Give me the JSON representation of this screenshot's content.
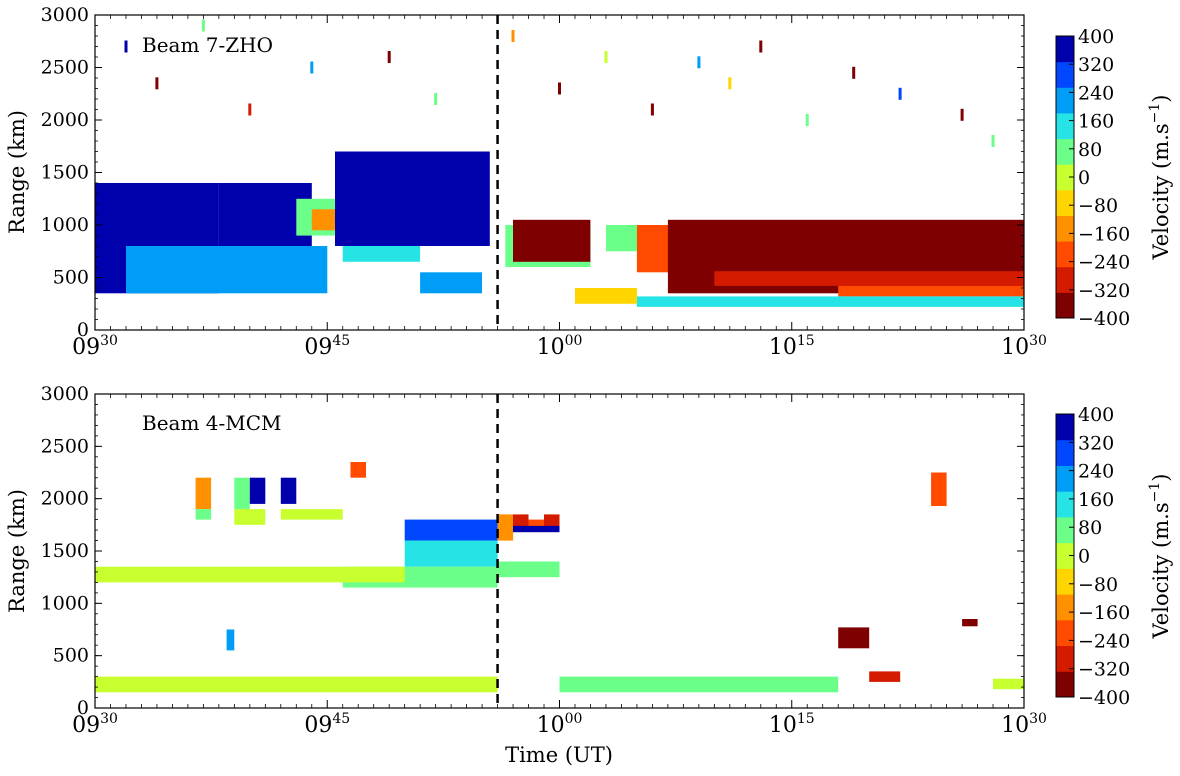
{
  "chart_data": [
    {
      "type": "heatmap",
      "title": "Beam 7-ZHO",
      "ylabel": "Range (km)",
      "ylim": [
        0,
        3000
      ],
      "yticks": [
        "0",
        "500",
        "1000",
        "1500",
        "2000",
        "2500",
        "3000"
      ],
      "xticks": [
        {
          "hh": "09",
          "mm": "30"
        },
        {
          "hh": "09",
          "mm": "45"
        },
        {
          "hh": "10",
          "mm": "00"
        },
        {
          "hh": "10",
          "mm": "15"
        },
        {
          "hh": "10",
          "mm": "30"
        }
      ],
      "xlim_minutes": [
        570,
        630
      ],
      "marker_minute": 596,
      "colorbar": {
        "label": "Velocity (m.s",
        "label_sup": "−1",
        "ticks": [
          "400",
          "320",
          "240",
          "160",
          "80",
          "0",
          "−80",
          "−160",
          "−240",
          "−320",
          "−400"
        ],
        "range": [
          -400,
          400
        ]
      },
      "regions": [
        {
          "t0": 570,
          "t1": 578,
          "r0": 350,
          "r1": 1400,
          "v": 380
        },
        {
          "t0": 578,
          "t1": 584,
          "r0": 800,
          "r1": 1400,
          "v": 380
        },
        {
          "t0": 583,
          "t1": 586,
          "r0": 900,
          "r1": 1250,
          "v": 100
        },
        {
          "t0": 584,
          "t1": 585.5,
          "r0": 950,
          "r1": 1150,
          "v": -150
        },
        {
          "t0": 585.5,
          "t1": 595.5,
          "r0": 800,
          "r1": 1700,
          "v": 380
        },
        {
          "t0": 586,
          "t1": 591,
          "r0": 650,
          "r1": 800,
          "v": 150
        },
        {
          "t0": 572,
          "t1": 585,
          "r0": 350,
          "r1": 800,
          "v": 250
        },
        {
          "t0": 591,
          "t1": 595,
          "r0": 350,
          "r1": 550,
          "v": 200
        },
        {
          "t0": 596.5,
          "t1": 602,
          "r0": 600,
          "r1": 1000,
          "v": 60
        },
        {
          "t0": 597,
          "t1": 602,
          "r0": 650,
          "r1": 1050,
          "v": -360
        },
        {
          "t0": 601,
          "t1": 605,
          "r0": 250,
          "r1": 400,
          "v": -60
        },
        {
          "t0": 603,
          "t1": 606,
          "r0": 750,
          "r1": 1000,
          "v": 80
        },
        {
          "t0": 605,
          "t1": 608,
          "r0": 550,
          "r1": 1000,
          "v": -220
        },
        {
          "t0": 607,
          "t1": 630,
          "r0": 350,
          "r1": 1050,
          "v": -370
        },
        {
          "t0": 610,
          "t1": 630,
          "r0": 420,
          "r1": 560,
          "v": -280
        },
        {
          "t0": 618,
          "t1": 630,
          "r0": 320,
          "r1": 420,
          "v": -200
        },
        {
          "t0": 605,
          "t1": 630,
          "r0": 220,
          "r1": 320,
          "v": 120
        }
      ],
      "scatter": [
        {
          "t": 572,
          "r": 2700,
          "v": 380
        },
        {
          "t": 574,
          "r": 2350,
          "v": -380
        },
        {
          "t": 577,
          "r": 2900,
          "v": 100
        },
        {
          "t": 580,
          "r": 2100,
          "v": -300
        },
        {
          "t": 584,
          "r": 2500,
          "v": 250
        },
        {
          "t": 589,
          "r": 2600,
          "v": -380
        },
        {
          "t": 592,
          "r": 2200,
          "v": 60
        },
        {
          "t": 597,
          "r": 2800,
          "v": -120
        },
        {
          "t": 600,
          "r": 2300,
          "v": -380
        },
        {
          "t": 603,
          "r": 2600,
          "v": 20
        },
        {
          "t": 606,
          "r": 2100,
          "v": -390
        },
        {
          "t": 609,
          "r": 2550,
          "v": 200
        },
        {
          "t": 611,
          "r": 2350,
          "v": -60
        },
        {
          "t": 613,
          "r": 2700,
          "v": -380
        },
        {
          "t": 616,
          "r": 2000,
          "v": 100
        },
        {
          "t": 619,
          "r": 2450,
          "v": -380
        },
        {
          "t": 622,
          "r": 2250,
          "v": 300
        },
        {
          "t": 626,
          "r": 2050,
          "v": -360
        },
        {
          "t": 628,
          "r": 1800,
          "v": 60
        }
      ]
    },
    {
      "type": "heatmap",
      "title": "Beam 4-MCM",
      "ylabel": "Range (km)",
      "xlabel": "Time (UT)",
      "ylim": [
        0,
        3000
      ],
      "yticks": [
        "0",
        "500",
        "1000",
        "1500",
        "2000",
        "2500",
        "3000"
      ],
      "xticks": [
        {
          "hh": "09",
          "mm": "30"
        },
        {
          "hh": "09",
          "mm": "45"
        },
        {
          "hh": "10",
          "mm": "00"
        },
        {
          "hh": "10",
          "mm": "15"
        },
        {
          "hh": "10",
          "mm": "30"
        }
      ],
      "xlim_minutes": [
        570,
        630
      ],
      "marker_minute": 596,
      "colorbar": {
        "label": "Velocity (m.s",
        "label_sup": "−1",
        "ticks": [
          "400",
          "320",
          "240",
          "160",
          "80",
          "0",
          "−80",
          "−160",
          "−240",
          "−320",
          "−400"
        ],
        "range": [
          -400,
          400
        ]
      },
      "regions": [
        {
          "t0": 576.5,
          "t1": 577.5,
          "r0": 1900,
          "r1": 2200,
          "v": -120
        },
        {
          "t0": 576.5,
          "t1": 577.5,
          "r0": 1800,
          "r1": 1900,
          "v": 40
        },
        {
          "t0": 579,
          "t1": 580,
          "r0": 1900,
          "r1": 2200,
          "v": 40
        },
        {
          "t0": 580,
          "t1": 581,
          "r0": 1950,
          "r1": 2200,
          "v": 380
        },
        {
          "t0": 582,
          "t1": 583,
          "r0": 1950,
          "r1": 2200,
          "v": 380
        },
        {
          "t0": 586.5,
          "t1": 587.5,
          "r0": 2200,
          "r1": 2350,
          "v": -200
        },
        {
          "t0": 579,
          "t1": 581,
          "r0": 1750,
          "r1": 1900,
          "v": -30
        },
        {
          "t0": 582,
          "t1": 586,
          "r0": 1800,
          "r1": 1900,
          "v": -30
        },
        {
          "t0": 590,
          "t1": 596,
          "r0": 1600,
          "r1": 1800,
          "v": 260
        },
        {
          "t0": 590,
          "t1": 596,
          "r0": 1350,
          "r1": 1600,
          "v": 120
        },
        {
          "t0": 586,
          "t1": 596,
          "r0": 1150,
          "r1": 1350,
          "v": 40
        },
        {
          "t0": 570,
          "t1": 590,
          "r0": 1200,
          "r1": 1350,
          "v": 20
        },
        {
          "t0": 596,
          "t1": 597,
          "r0": 1600,
          "r1": 1850,
          "v": -120
        },
        {
          "t0": 597,
          "t1": 598,
          "r0": 1700,
          "r1": 1850,
          "v": -300
        },
        {
          "t0": 598,
          "t1": 599,
          "r0": 1700,
          "r1": 1800,
          "v": -220
        },
        {
          "t0": 599,
          "t1": 600,
          "r0": 1700,
          "r1": 1850,
          "v": -300
        },
        {
          "t0": 597,
          "t1": 600,
          "r0": 1680,
          "r1": 1740,
          "v": 390
        },
        {
          "t0": 596,
          "t1": 600,
          "r0": 1250,
          "r1": 1400,
          "v": 40
        },
        {
          "t0": 578.5,
          "t1": 579,
          "r0": 550,
          "r1": 750,
          "v": 230
        },
        {
          "t0": 570,
          "t1": 596,
          "r0": 150,
          "r1": 300,
          "v": 20
        },
        {
          "t0": 600,
          "t1": 618,
          "r0": 150,
          "r1": 300,
          "v": 40
        },
        {
          "t0": 618,
          "t1": 620,
          "r0": 570,
          "r1": 770,
          "v": -390
        },
        {
          "t0": 624,
          "t1": 625,
          "r0": 1930,
          "r1": 2250,
          "v": -200
        },
        {
          "t0": 620,
          "t1": 622,
          "r0": 250,
          "r1": 350,
          "v": -300
        },
        {
          "t0": 626,
          "t1": 627,
          "r0": 780,
          "r1": 850,
          "v": -380
        },
        {
          "t0": 628,
          "t1": 630,
          "r0": 180,
          "r1": 280,
          "v": -30
        }
      ],
      "scatter": []
    }
  ],
  "panels": [
    {
      "title_text": "Beam 7-ZHO"
    },
    {
      "title_text": "Beam 4-MCM"
    }
  ],
  "xaxis_label": "Time (UT)",
  "colormap": [
    "#7f0000",
    "#d41b00",
    "#ff4a00",
    "#ff9000",
    "#ffd500",
    "#c8ff2e",
    "#6bff8a",
    "#26e4e6",
    "#009df6",
    "#0047ff",
    "#0000ad"
  ]
}
